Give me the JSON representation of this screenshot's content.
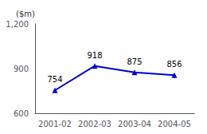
{
  "chart_data": {
    "type": "line",
    "categories": [
      "2001-02",
      "2002-03",
      "2003-04",
      "2004-05"
    ],
    "values": [
      754,
      918,
      875,
      856
    ],
    "color": "#0000cc",
    "marker": "triangle",
    "ylabel": "($m)",
    "ylim": [
      600,
      1200
    ],
    "yticks": [
      600,
      900,
      {
        "value": 1200,
        "label": "1,200"
      }
    ],
    "data_labels": true,
    "grid": false
  }
}
